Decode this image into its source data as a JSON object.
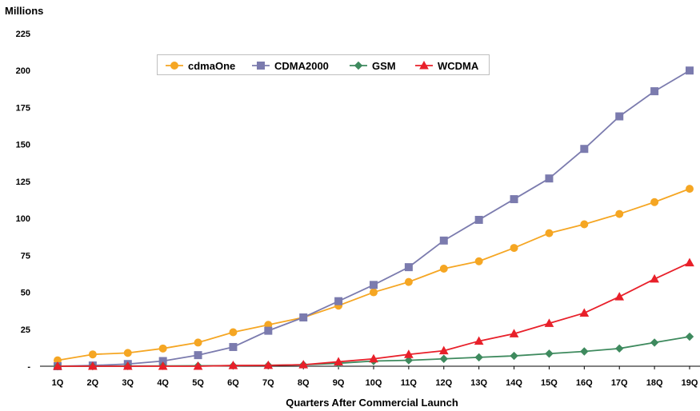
{
  "chart_data": {
    "type": "line",
    "ylabel": "Millions",
    "xlabel": "Quarters After Commercial Launch",
    "ylim": [
      0,
      225
    ],
    "yticks": [
      "-",
      "25",
      "50",
      "75",
      "100",
      "125",
      "150",
      "175",
      "200",
      "225"
    ],
    "categories": [
      "1Q",
      "2Q",
      "3Q",
      "4Q",
      "5Q",
      "6Q",
      "7Q",
      "8Q",
      "9Q",
      "10Q",
      "11Q",
      "12Q",
      "13Q",
      "14Q",
      "15Q",
      "16Q",
      "17Q",
      "18Q",
      "19Q"
    ],
    "legend_position": "top-left",
    "series": [
      {
        "name": "cdmaOne",
        "color": "#f5a623",
        "marker": "circle",
        "values": [
          4,
          8,
          9,
          12,
          16,
          23,
          28,
          33,
          41,
          50,
          57,
          66,
          71,
          80,
          90,
          96,
          103,
          111,
          120
        ]
      },
      {
        "name": "CDMA2000",
        "color": "#7b7bae",
        "marker": "square",
        "values": [
          0,
          0.5,
          1.5,
          3.5,
          7.5,
          13,
          24,
          33,
          44,
          55,
          67,
          85,
          99,
          113,
          127,
          147,
          169,
          186,
          200
        ]
      },
      {
        "name": "GSM",
        "color": "#3e8a5e",
        "marker": "diamond",
        "values": [
          0,
          0,
          0.1,
          0.2,
          0.3,
          0.4,
          0.6,
          1,
          2,
          3.5,
          4,
          5,
          6,
          7,
          8.5,
          10,
          12,
          16,
          20
        ]
      },
      {
        "name": "WCDMA",
        "color": "#e8202a",
        "marker": "triangle",
        "values": [
          0,
          0,
          0,
          0,
          0,
          0.5,
          0.6,
          1,
          3,
          5,
          8,
          10.5,
          17,
          22,
          29,
          36,
          47,
          59,
          70
        ]
      }
    ]
  }
}
